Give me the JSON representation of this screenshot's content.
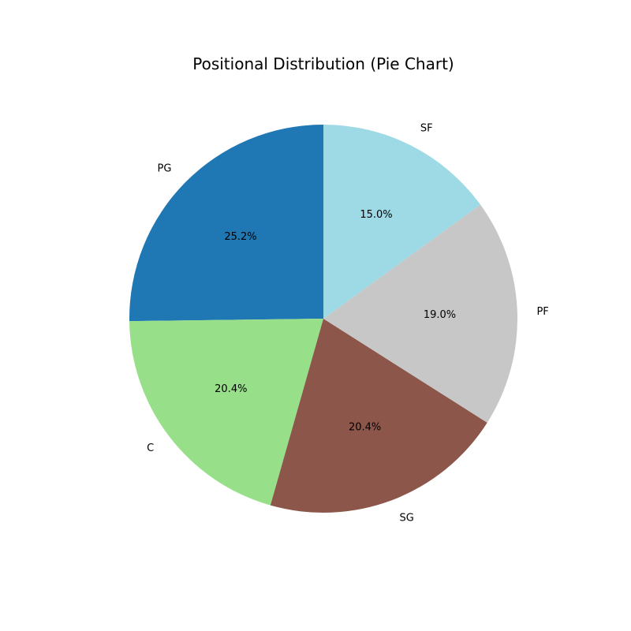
{
  "chart_data": {
    "type": "pie",
    "title": "Positional Distribution (Pie Chart)",
    "categories": [
      "PG",
      "C",
      "SG",
      "PF",
      "SF"
    ],
    "values": [
      25.2,
      20.4,
      20.4,
      19.0,
      15.0
    ],
    "percent_labels": [
      "25.2%",
      "20.4%",
      "20.4%",
      "19.0%",
      "15.0%"
    ],
    "colors": [
      "#1f77b4",
      "#98df89",
      "#8c564b",
      "#c7c7c7",
      "#9edae5"
    ],
    "start_angle_deg": 90,
    "direction": "counterclockwise"
  }
}
